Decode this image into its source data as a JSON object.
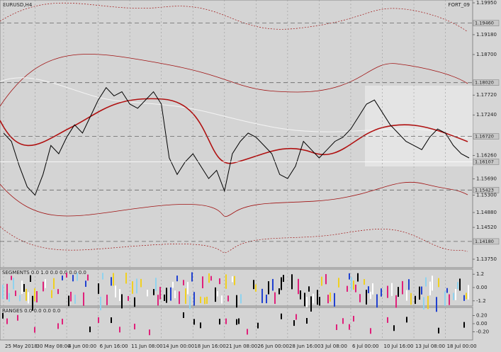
{
  "chart_data": [
    {
      "type": "line",
      "title": "EURUSD,H4",
      "subtitle": "FORT_09",
      "color": "#000000",
      "categories": [
        "25 May 2018",
        null,
        null,
        null,
        "30 May 08:00",
        null,
        null,
        null,
        "4 Jun 00:00",
        null,
        null,
        null,
        "6 Jun 16:00",
        null,
        null,
        null,
        "11 Jun 08:00",
        null,
        null,
        null,
        "14 Jun 00:00",
        null,
        null,
        null,
        "18 Jun 16:00",
        null,
        null,
        null,
        "21 Jun 08:00",
        null,
        null,
        null,
        "26 Jun 00:00",
        null,
        null,
        null,
        "28 Jun 16:00",
        null,
        null,
        null,
        "3 Jul 08:00",
        null,
        null,
        null,
        "6 Jul 00:00",
        null,
        null,
        null,
        "10 Jul 16:00",
        null,
        null,
        null,
        "13 Jul 08:00",
        null,
        null,
        null,
        "18 Jul 00:00",
        null,
        null,
        null
      ],
      "values": [
        1.168,
        1.166,
        1.16,
        1.155,
        1.153,
        1.158,
        1.165,
        1.163,
        1.167,
        1.17,
        1.168,
        1.172,
        1.176,
        1.179,
        1.177,
        1.178,
        1.175,
        1.174,
        1.176,
        1.178,
        1.175,
        1.162,
        1.158,
        1.161,
        1.163,
        1.16,
        1.157,
        1.159,
        1.154,
        1.163,
        1.166,
        1.168,
        1.167,
        1.165,
        1.163,
        1.158,
        1.157,
        1.16,
        1.166,
        1.164,
        1.162,
        1.164,
        1.166,
        1.167,
        1.169,
        1.172,
        1.175,
        1.176,
        1.173,
        1.17,
        1.168,
        1.166,
        1.165,
        1.164,
        1.167,
        1.169,
        1.168,
        1.165,
        1.163,
        1.162
      ],
      "ylim": [
        1.1375,
        1.1995
      ],
      "yticks": [
        {
          "value": 1.1995,
          "label": "1.19950"
        },
        {
          "value": 1.1918,
          "label": "1.19180"
        },
        {
          "value": 1.187,
          "label": "1.18700"
        },
        {
          "value": 1.1772,
          "label": "1.17720"
        },
        {
          "value": 1.1724,
          "label": "1.17240"
        },
        {
          "value": 1.1626,
          "label": "1.16260"
        },
        {
          "value": 1.1569,
          "label": "1.15690"
        },
        {
          "value": 1.153,
          "label": "1.15300"
        },
        {
          "value": 1.1488,
          "label": "1.14880"
        },
        {
          "value": 1.1452,
          "label": "1.14520"
        },
        {
          "value": 1.1375,
          "label": "1.13750"
        }
      ],
      "price_levels": [
        {
          "value": 1.1946,
          "label": "1.19460"
        },
        {
          "value": 1.1802,
          "label": "1.18020"
        },
        {
          "value": 1.1672,
          "label": "1.16720"
        },
        {
          "value": 1.16107,
          "label": "1.16107"
        },
        {
          "value": 1.15423,
          "label": "1.15423"
        },
        {
          "value": 1.1418,
          "label": "1.14180"
        }
      ]
    },
    {
      "type": "indicator",
      "title": "SEGMENTS 0.0 1.0 0.0 0.0 0.0 0.0",
      "ylim": [
        -1.4,
        1.4
      ],
      "yticks": [
        1.2,
        {
          "value": 0,
          "label": "0.00"
        },
        -1.2
      ]
    },
    {
      "type": "indicator",
      "title": "RANGES 0.0 0.0 0.0 0.0",
      "ylim": [
        -0.3,
        0.3
      ],
      "yticks": [
        {
          "value": 0.2,
          "label": "0.20"
        },
        {
          "value": 0,
          "label": "0.00"
        },
        {
          "value": -0.2,
          "label": "-0.20"
        }
      ]
    }
  ]
}
